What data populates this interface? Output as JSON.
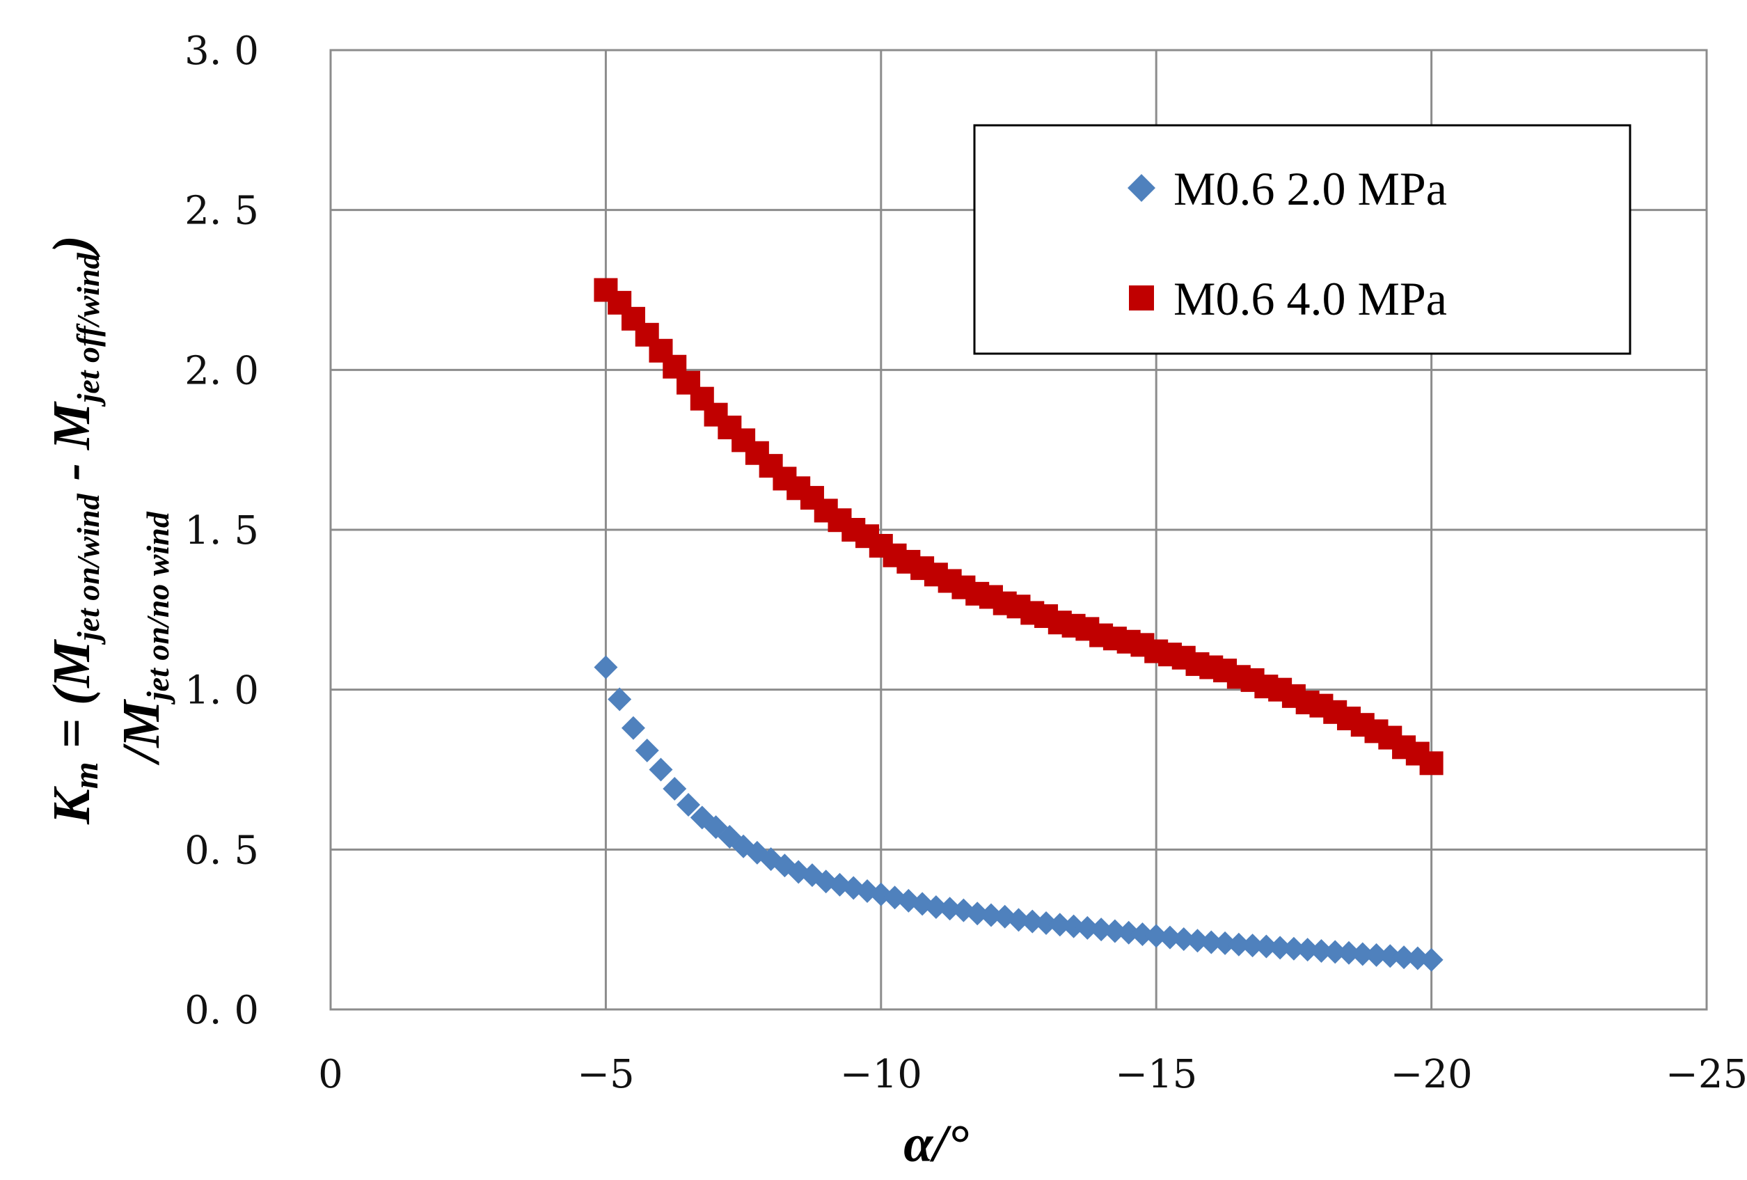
{
  "chart_data": {
    "type": "scatter",
    "title": "",
    "xlabel": "α/°",
    "ylabel_lines": [
      {
        "main": "K",
        "main_sub": "m",
        "rest": " = (M",
        "sub1": "jet on/wind",
        "mid": " - M",
        "sub2": "jet off/wind",
        "close": ")"
      },
      {
        "main": "/M",
        "sub": "jet on/no wind"
      }
    ],
    "xlim": [
      0,
      -25
    ],
    "ylim": [
      0,
      3.0
    ],
    "x_ticks": [
      0,
      -5,
      -10,
      -15,
      -20,
      -25
    ],
    "x_tick_labels": [
      "0",
      "−5",
      "−10",
      "−15",
      "−20",
      "−25"
    ],
    "y_ticks": [
      0,
      0.5,
      1.0,
      1.5,
      2.0,
      2.5,
      3.0
    ],
    "y_tick_labels": [
      "0. 0",
      "0. 5",
      "1. 0",
      "1. 5",
      "2. 0",
      "2. 5",
      "3. 0"
    ],
    "grid": true,
    "legend_position": "top-right",
    "series": [
      {
        "name": "M0.6 2.0 MPa",
        "marker": "diamond",
        "color": "#4F81BD",
        "x": [
          -5.0,
          -5.25,
          -5.5,
          -5.75,
          -6.0,
          -6.25,
          -6.5,
          -6.75,
          -7.0,
          -7.25,
          -7.5,
          -7.75,
          -8.0,
          -8.25,
          -8.5,
          -8.75,
          -9.0,
          -9.25,
          -9.5,
          -9.75,
          -10.0,
          -10.25,
          -10.5,
          -10.75,
          -11.0,
          -11.25,
          -11.5,
          -11.75,
          -12.0,
          -12.25,
          -12.5,
          -12.75,
          -13.0,
          -13.25,
          -13.5,
          -13.75,
          -14.0,
          -14.25,
          -14.5,
          -14.75,
          -15.0,
          -15.25,
          -15.5,
          -15.75,
          -16.0,
          -16.25,
          -16.5,
          -16.75,
          -17.0,
          -17.25,
          -17.5,
          -17.75,
          -18.0,
          -18.25,
          -18.5,
          -18.75,
          -19.0,
          -19.25,
          -19.5,
          -19.75,
          -20.0
        ],
        "y": [
          1.07,
          0.97,
          0.88,
          0.81,
          0.75,
          0.69,
          0.64,
          0.6,
          0.57,
          0.54,
          0.51,
          0.49,
          0.47,
          0.45,
          0.43,
          0.42,
          0.4,
          0.39,
          0.38,
          0.37,
          0.36,
          0.35,
          0.34,
          0.33,
          0.32,
          0.315,
          0.31,
          0.3,
          0.295,
          0.29,
          0.28,
          0.275,
          0.27,
          0.265,
          0.26,
          0.255,
          0.25,
          0.245,
          0.24,
          0.235,
          0.23,
          0.225,
          0.22,
          0.215,
          0.21,
          0.207,
          0.203,
          0.2,
          0.197,
          0.193,
          0.19,
          0.187,
          0.183,
          0.18,
          0.177,
          0.173,
          0.17,
          0.167,
          0.163,
          0.16,
          0.155
        ]
      },
      {
        "name": "M0.6 4.0 MPa",
        "marker": "square",
        "color": "#C00000",
        "x": [
          -5.0,
          -5.25,
          -5.5,
          -5.75,
          -6.0,
          -6.25,
          -6.5,
          -6.75,
          -7.0,
          -7.25,
          -7.5,
          -7.75,
          -8.0,
          -8.25,
          -8.5,
          -8.75,
          -9.0,
          -9.25,
          -9.5,
          -9.75,
          -10.0,
          -10.25,
          -10.5,
          -10.75,
          -11.0,
          -11.25,
          -11.5,
          -11.75,
          -12.0,
          -12.25,
          -12.5,
          -12.75,
          -13.0,
          -13.25,
          -13.5,
          -13.75,
          -14.0,
          -14.25,
          -14.5,
          -14.75,
          -15.0,
          -15.25,
          -15.5,
          -15.75,
          -16.0,
          -16.25,
          -16.5,
          -16.75,
          -17.0,
          -17.25,
          -17.5,
          -17.75,
          -18.0,
          -18.25,
          -18.5,
          -18.75,
          -19.0,
          -19.25,
          -19.5,
          -19.75,
          -20.0
        ],
        "y": [
          2.25,
          2.21,
          2.16,
          2.11,
          2.06,
          2.01,
          1.96,
          1.91,
          1.86,
          1.82,
          1.78,
          1.74,
          1.7,
          1.66,
          1.63,
          1.6,
          1.56,
          1.53,
          1.5,
          1.48,
          1.45,
          1.42,
          1.4,
          1.38,
          1.36,
          1.34,
          1.32,
          1.3,
          1.29,
          1.27,
          1.26,
          1.24,
          1.23,
          1.21,
          1.2,
          1.19,
          1.17,
          1.16,
          1.15,
          1.14,
          1.12,
          1.11,
          1.1,
          1.08,
          1.07,
          1.06,
          1.04,
          1.03,
          1.01,
          1.0,
          0.98,
          0.96,
          0.95,
          0.93,
          0.91,
          0.89,
          0.87,
          0.85,
          0.82,
          0.8,
          0.77
        ]
      }
    ]
  }
}
